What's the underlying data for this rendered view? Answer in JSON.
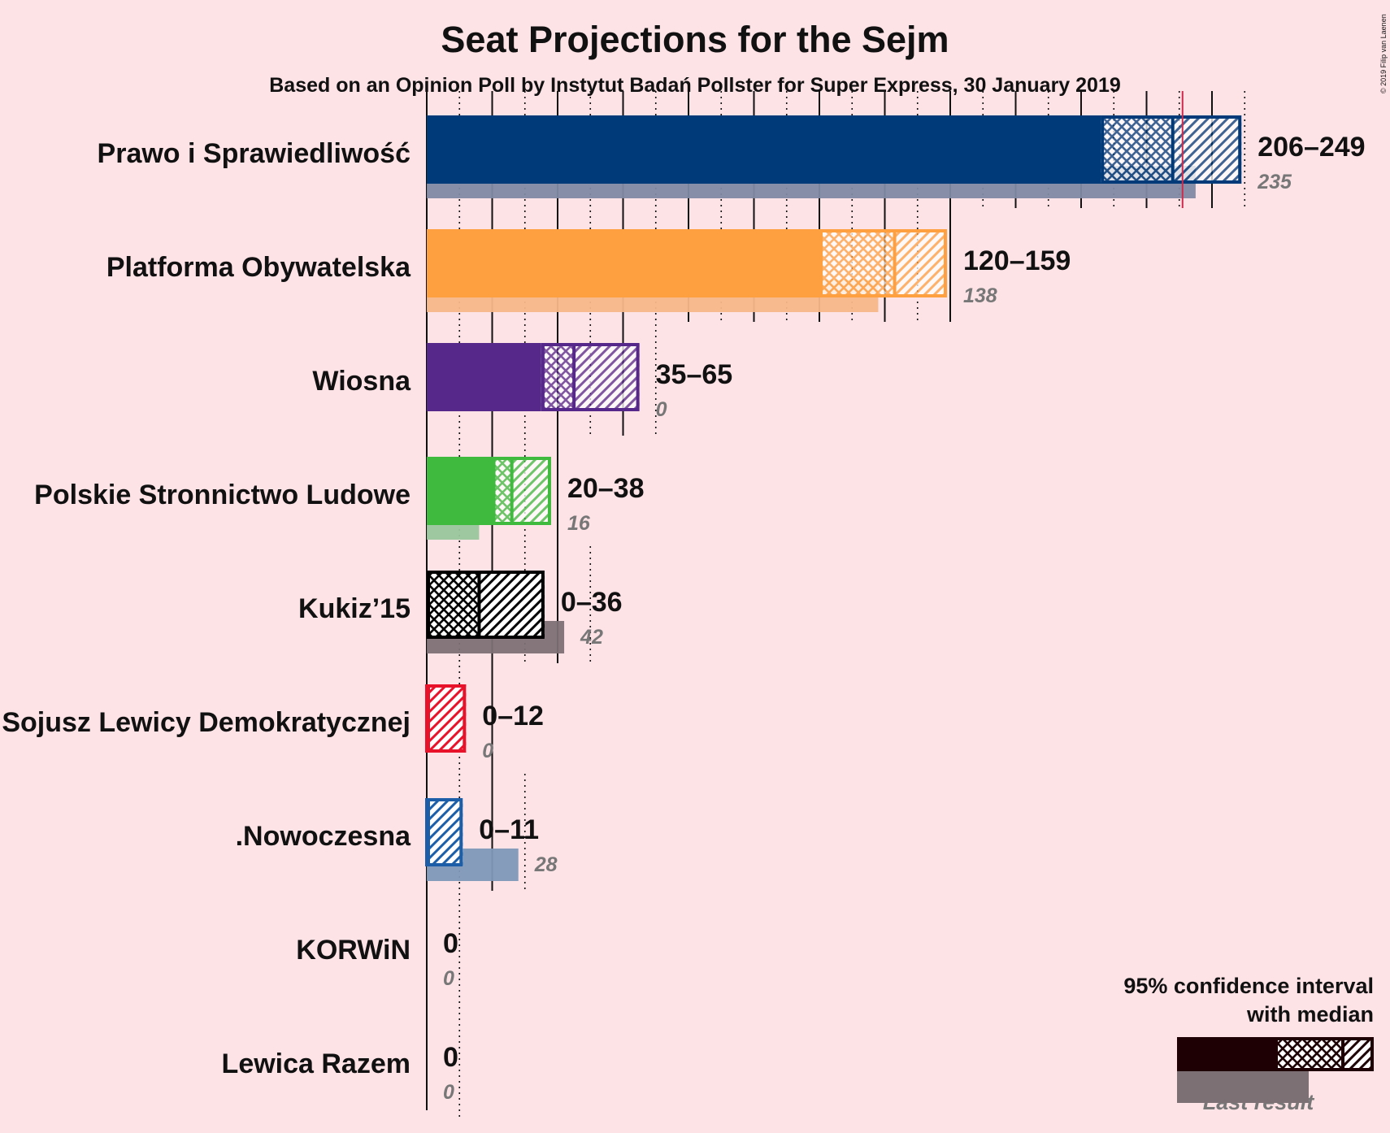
{
  "title": "Seat Projections for the Sejm",
  "subtitle": "Based on an Opinion Poll by Instytut Badań Pollster for Super Express, 30 January 2019",
  "copyright": "© 2019 Filip van Laenen",
  "legend": {
    "ci_line1": "95% confidence interval",
    "ci_line2": "with median",
    "last_result": "Last result"
  },
  "chart_data": {
    "type": "bar",
    "orientation": "horizontal",
    "title": "Seat Projections for the Sejm",
    "subtitle": "Based on an Opinion Poll by Instytut Badań Pollster for Super Express, 30 January 2019",
    "xlim": [
      0,
      250
    ],
    "majority_line": 231,
    "grid": true,
    "legend_position": "bottom-right",
    "parties": [
      {
        "name": "Prawo i Sprawiedliwość",
        "color": "#003a78",
        "light": "#7f8aa3",
        "low": 206,
        "median": 228,
        "high": 249,
        "range_label": "206–249",
        "last": 235,
        "last_label": "235"
      },
      {
        "name": "Platforma Obywatelska",
        "color": "#ffa040",
        "light": "#f7b789",
        "low": 120,
        "median": 143,
        "high": 159,
        "range_label": "120–159",
        "last": 138,
        "last_label": "138"
      },
      {
        "name": "Wiosna",
        "color": "#56288a",
        "light": "#a995c3",
        "low": 35,
        "median": 45,
        "high": 65,
        "range_label": "35–65",
        "last": 0,
        "last_label": "0"
      },
      {
        "name": "Polskie Stronnictwo Ludowe",
        "color": "#3fba3f",
        "light": "#99c69b",
        "low": 20,
        "median": 26,
        "high": 38,
        "range_label": "20–38",
        "last": 16,
        "last_label": "16"
      },
      {
        "name": "Kukiz’15",
        "color": "#000000",
        "light": "#7d7075",
        "low": 0,
        "median": 16,
        "high": 36,
        "range_label": "0–36",
        "last": 42,
        "last_label": "42"
      },
      {
        "name": "Sojusz Lewicy Demokratycznej",
        "color": "#e8122a",
        "light": "#f08a95",
        "low": 0,
        "median": 0,
        "high": 12,
        "range_label": "0–12",
        "last": 0,
        "last_label": "0"
      },
      {
        "name": ".Nowoczesna",
        "color": "#1c5fa8",
        "light": "#7f98b8",
        "low": 0,
        "median": 0,
        "high": 11,
        "range_label": "0–11",
        "last": 28,
        "last_label": "28"
      },
      {
        "name": "KORWiN",
        "color": "#222222",
        "light": "#888888",
        "low": 0,
        "median": 0,
        "high": 0,
        "range_label": "0",
        "last": 0,
        "last_label": "0"
      },
      {
        "name": "Lewica Razem",
        "color": "#222222",
        "light": "#888888",
        "low": 0,
        "median": 0,
        "high": 0,
        "range_label": "0",
        "last": 0,
        "last_label": "0"
      }
    ]
  }
}
